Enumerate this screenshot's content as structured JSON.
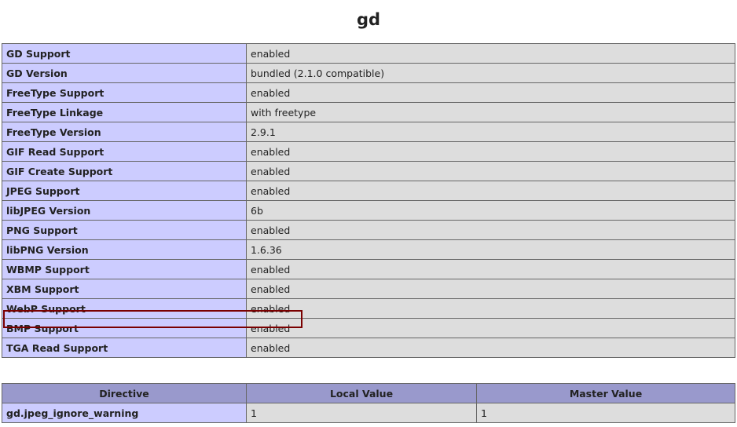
{
  "title": "gd",
  "rows": [
    [
      "GD Support",
      "enabled"
    ],
    [
      "GD Version",
      "bundled (2.1.0 compatible)"
    ],
    [
      "FreeType Support",
      "enabled"
    ],
    [
      "FreeType Linkage",
      "with freetype"
    ],
    [
      "FreeType Version",
      "2.9.1"
    ],
    [
      "GIF Read Support",
      "enabled"
    ],
    [
      "GIF Create Support",
      "enabled"
    ],
    [
      "JPEG Support",
      "enabled"
    ],
    [
      "libJPEG Version",
      "6b"
    ],
    [
      "PNG Support",
      "enabled"
    ],
    [
      "libPNG Version",
      "1.6.36"
    ],
    [
      "WBMP Support",
      "enabled"
    ],
    [
      "XBM Support",
      "enabled"
    ],
    [
      "WebP Support",
      "enabled"
    ],
    [
      "BMP Support",
      "enabled"
    ],
    [
      "TGA Read Support",
      "enabled"
    ]
  ],
  "highlighted_row": "WebP Support",
  "directives": {
    "headers": [
      "Directive",
      "Local Value",
      "Master Value"
    ],
    "rows": [
      [
        "gd.jpeg_ignore_warning",
        "1",
        "1"
      ]
    ]
  },
  "colors": {
    "label_bg": "#ccccff",
    "value_bg": "#dddddd",
    "header_bg": "#9999cc",
    "highlight": "#7a0000"
  }
}
